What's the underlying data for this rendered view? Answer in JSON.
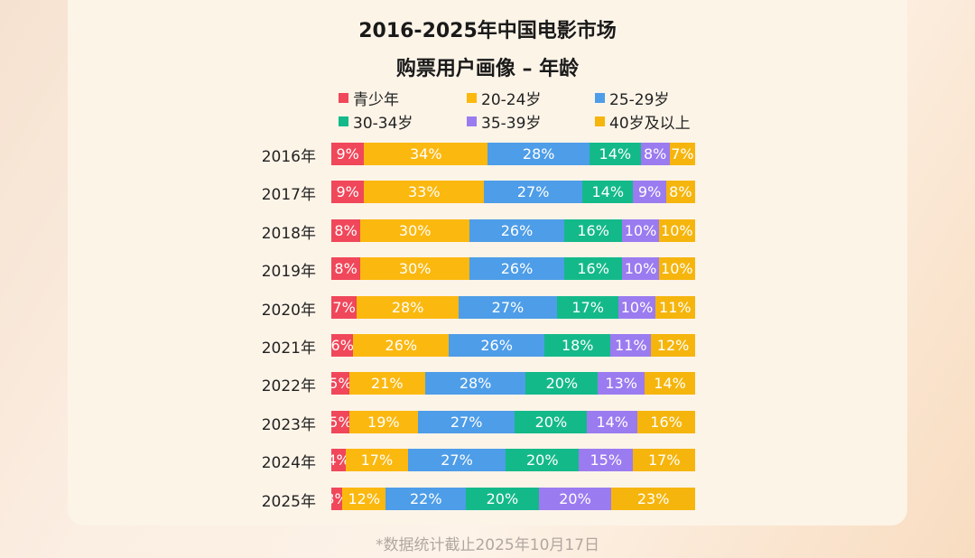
{
  "title_line1": "2016-2025年中国电影市场",
  "title_line2": "购票用户画像 – 年龄",
  "footnote": "*数据统计截止2025年10月17日",
  "chart_data": {
    "type": "bar",
    "orientation": "horizontal",
    "stacked": true,
    "normalized": true,
    "legend_position": "top",
    "categories": [
      "2016年",
      "2017年",
      "2018年",
      "2019年",
      "2020年",
      "2021年",
      "2022年",
      "2023年",
      "2024年",
      "2025年"
    ],
    "series": [
      {
        "name": "青少年",
        "color": "#f0475a",
        "values": [
          9,
          9,
          8,
          8,
          7,
          6,
          5,
          5,
          4,
          3
        ]
      },
      {
        "name": "20-24岁",
        "color": "#fbb80f",
        "values": [
          34,
          33,
          30,
          30,
          28,
          26,
          21,
          19,
          17,
          12
        ]
      },
      {
        "name": "25-29岁",
        "color": "#4e9de8",
        "values": [
          28,
          27,
          26,
          26,
          27,
          26,
          28,
          27,
          27,
          22
        ]
      },
      {
        "name": "30-34岁",
        "color": "#14b98a",
        "values": [
          14,
          14,
          16,
          16,
          17,
          18,
          20,
          20,
          20,
          20
        ]
      },
      {
        "name": "35-39岁",
        "color": "#9b7bf0",
        "values": [
          8,
          9,
          10,
          10,
          10,
          11,
          13,
          14,
          15,
          20
        ]
      },
      {
        "name": "40岁及以上",
        "color": "#f5b50c",
        "values": [
          7,
          8,
          10,
          10,
          11,
          12,
          14,
          16,
          17,
          23
        ]
      }
    ]
  }
}
